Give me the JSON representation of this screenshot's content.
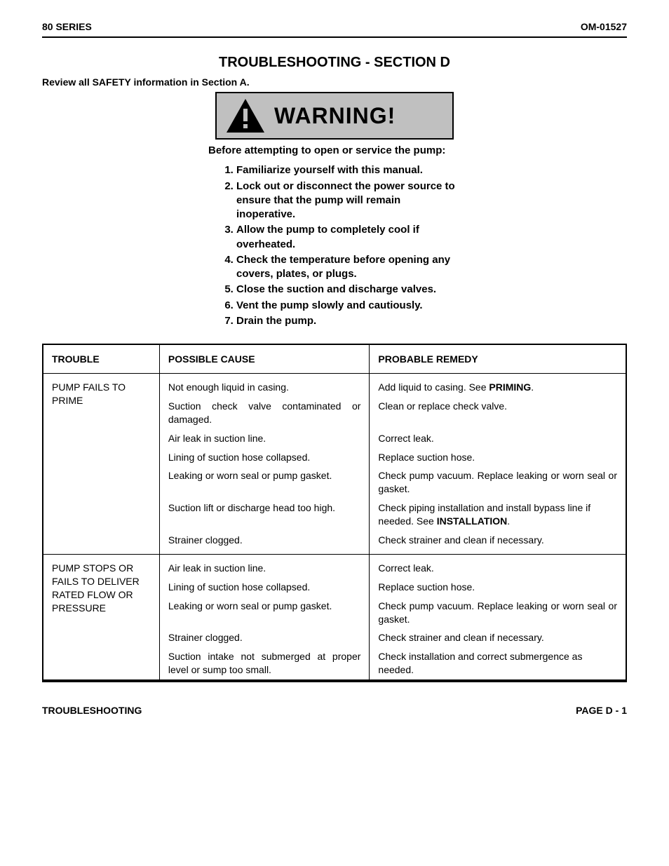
{
  "header": {
    "left": "80 SERIES",
    "right": "OM-01527"
  },
  "title": "TROUBLESHOOTING - SECTION D",
  "review_line": "Review all SAFETY information in Section A.",
  "warning": {
    "label": "WARNING!",
    "intro": "Before attempting to open or service the pump:",
    "items": [
      "Familiarize yourself with this manual.",
      "Lock out or disconnect the power source to ensure that the pump will remain inoperative.",
      "Allow the pump to completely cool if overheated.",
      "Check the temperature before opening any covers, plates, or plugs.",
      "Close the suction and discharge valves.",
      "Vent the pump slowly and cautiously.",
      "Drain the pump."
    ]
  },
  "table": {
    "headers": {
      "trouble": "TROUBLE",
      "cause": "POSSIBLE CAUSE",
      "remedy": "PROBABLE REMEDY"
    },
    "sections": [
      {
        "trouble": "PUMP FAILS TO PRIME",
        "rows": [
          {
            "cause": "Not enough liquid in casing.",
            "remedy_pre": "Add liquid to casing. See ",
            "remedy_bold": "PRIMING",
            "remedy_post": "."
          },
          {
            "cause": "Suction check valve contaminated or damaged.",
            "cause_justify": true,
            "remedy": "Clean or replace check valve."
          },
          {
            "cause": "Air leak in suction line.",
            "remedy": "Correct leak."
          },
          {
            "cause": "Lining of suction hose collapsed.",
            "remedy": "Replace suction hose."
          },
          {
            "cause": "Leaking or worn seal or pump gasket.",
            "remedy": "Check pump vacuum. Replace leaking or worn seal or gasket.",
            "remedy_justify": true
          },
          {
            "cause": "Suction lift or discharge head too high.",
            "remedy_pre": "Check piping installation and install bypass line if needed. See ",
            "remedy_bold": "INSTALLATION",
            "remedy_post": "."
          },
          {
            "cause": "Strainer clogged.",
            "remedy": "Check strainer and clean if necessary."
          }
        ]
      },
      {
        "trouble": "PUMP STOPS OR FAILS TO DELIVER RATED FLOW OR PRESSURE",
        "rows": [
          {
            "cause": "Air leak in suction line.",
            "remedy": "Correct leak."
          },
          {
            "cause": "Lining of suction hose collapsed.",
            "remedy": "Replace suction hose."
          },
          {
            "cause": "Leaking or worn seal or pump gasket.",
            "remedy": "Check pump vacuum. Replace leaking or worn seal or gasket.",
            "remedy_justify": true
          },
          {
            "cause": "Strainer clogged.",
            "remedy": "Check strainer and clean if necessary."
          },
          {
            "cause": "Suction intake not submerged at proper level or sump too small.",
            "cause_justify": true,
            "remedy": "Check installation and correct submergence as needed."
          }
        ]
      }
    ]
  },
  "footer": {
    "left": "TROUBLESHOOTING",
    "right": "PAGE D - 1"
  },
  "colors": {
    "text": "#000000",
    "background": "#ffffff",
    "warning_bg": "#c0c0c0",
    "border": "#000000"
  }
}
